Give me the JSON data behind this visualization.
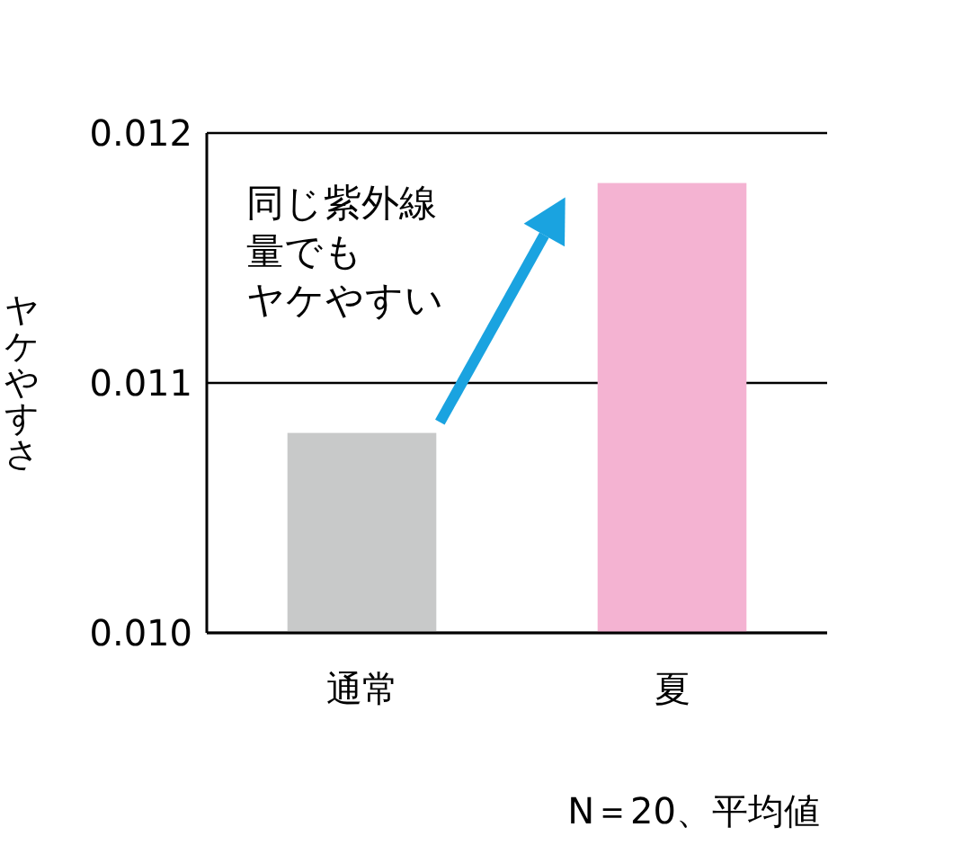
{
  "chart_data": {
    "type": "bar",
    "ylabel": "ヤケやすさ",
    "categories": [
      "通常",
      "夏"
    ],
    "values": [
      0.0108,
      0.0118
    ],
    "colors": [
      "#c8c9c9",
      "#f4b3d2"
    ],
    "ylim": [
      0.01,
      0.012
    ],
    "yticks": [
      {
        "value": 0.01,
        "label": "0.010"
      },
      {
        "value": 0.011,
        "label": "0.011"
      },
      {
        "value": 0.012,
        "label": "0.012"
      }
    ],
    "grid": "y",
    "annotations": [
      "同じ紫外線",
      "量でも",
      "ヤケやすい",
      "N＝20、平均値"
    ]
  }
}
